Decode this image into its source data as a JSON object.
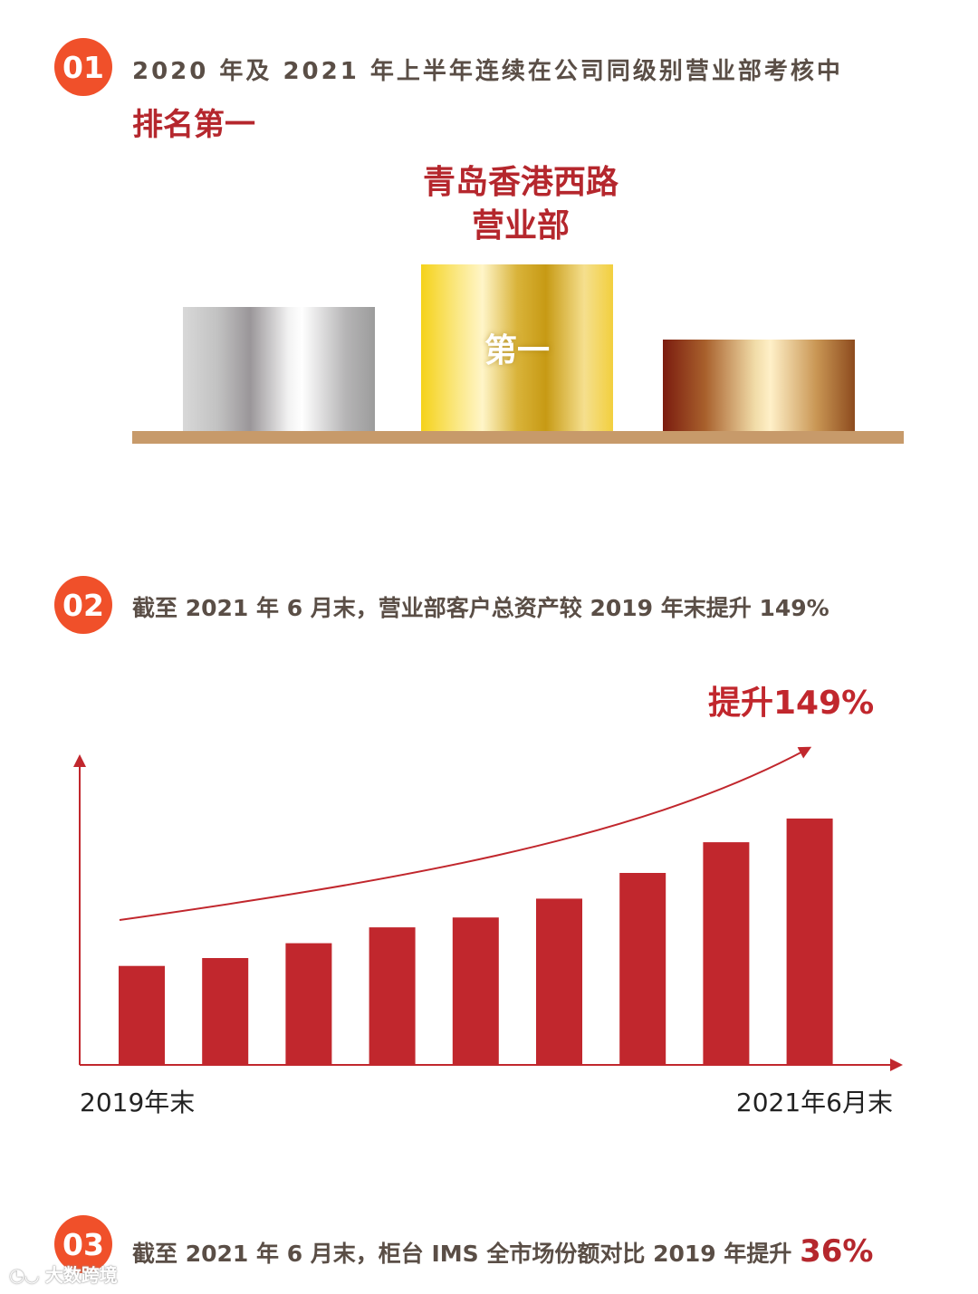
{
  "section1": {
    "number": "01",
    "heading": "2020 年及 2021 年上半年连续在公司同级别营业部考核中",
    "highlight": "排名第一",
    "podium": {
      "winner_line1": "青岛香港西路",
      "winner_line2": "营业部",
      "first_label": "第一"
    }
  },
  "section2": {
    "number": "02",
    "heading": "截至 2021 年 6 月末，营业部客户总资产较 2019 年末提升 149%",
    "callout": "提升149%",
    "colors": {
      "bar": "#c1272d",
      "axis": "#c1272d",
      "trend": "#c1272d"
    },
    "chart_data": {
      "type": "bar",
      "title": "提升149%",
      "categories": [
        "",
        "",
        "",
        "",
        "",
        "",
        "",
        "",
        ""
      ],
      "values": [
        100,
        108,
        123,
        139,
        149,
        168,
        194,
        225,
        249
      ],
      "xlabel_start": "2019年末",
      "xlabel_end": "2021年6月末",
      "ylim": [
        0,
        280
      ],
      "grid": false,
      "trend_arrow": true
    }
  },
  "section3": {
    "number": "03",
    "heading_prefix": "截至 2021 年 6 月末，柜台 IMS 全市场份额对比 2019 年提升",
    "highlight": "36%"
  },
  "watermark": "大数跨境"
}
